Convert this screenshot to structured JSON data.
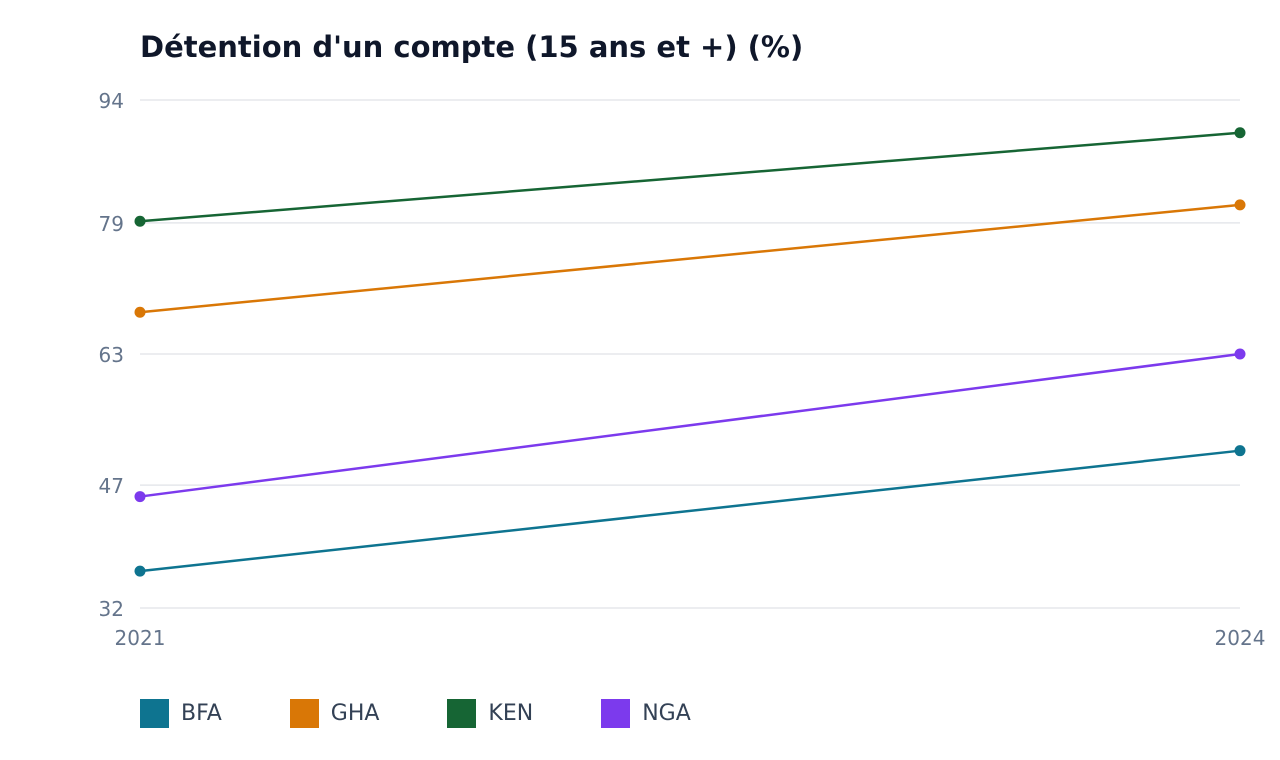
{
  "chart_data": {
    "type": "line",
    "title": "Détention d'un compte (15 ans et +) (%)",
    "xlabel": "",
    "ylabel": "",
    "x": [
      "2021",
      "2024"
    ],
    "yticks": [
      "32",
      "47",
      "63",
      "79",
      "94"
    ],
    "ylim": [
      32,
      94
    ],
    "grid": "horizontal",
    "legend_position": "bottom-left",
    "series": [
      {
        "name": "BFA",
        "values": [
          36.5,
          51.2
        ],
        "color": "#0e7490"
      },
      {
        "name": "GHA",
        "values": [
          68.1,
          81.2
        ],
        "color": "#d97706"
      },
      {
        "name": "KEN",
        "values": [
          79.2,
          90.0
        ],
        "color": "#166534"
      },
      {
        "name": "NGA",
        "values": [
          45.6,
          63.0
        ],
        "color": "#7c3aed"
      }
    ]
  }
}
